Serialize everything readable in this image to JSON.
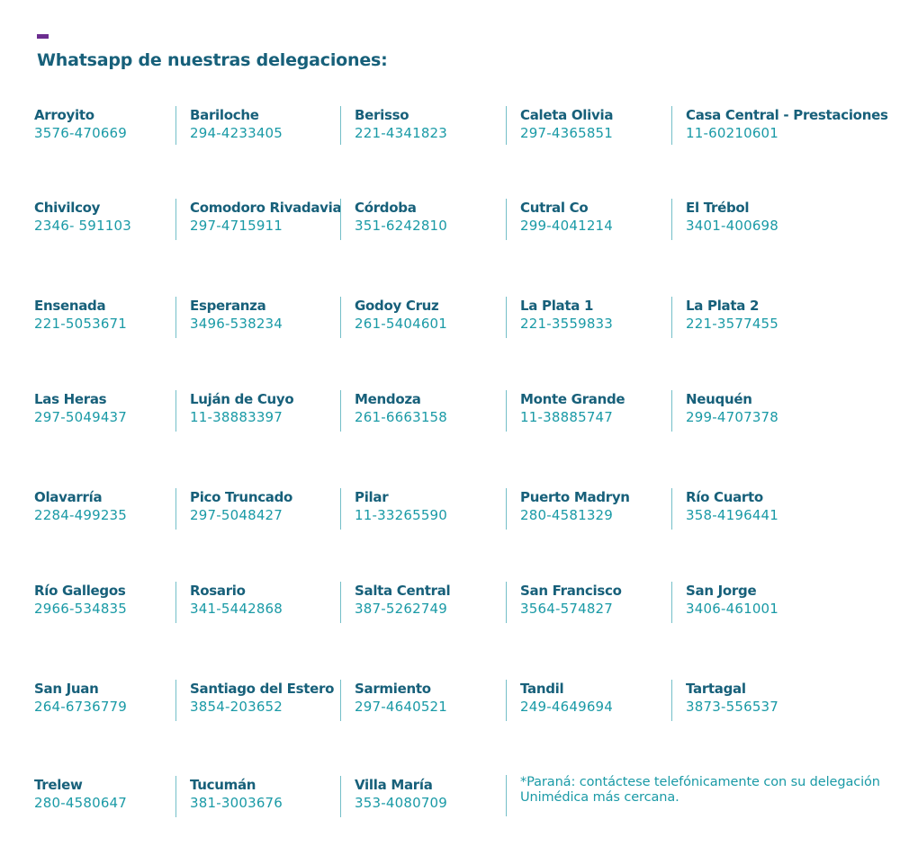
{
  "colors": {
    "accent": "#6b2d8f",
    "title": "#17607a",
    "phone": "#1a9aa6",
    "divider": "#74bfc8"
  },
  "header": {
    "title": "Whatsapp de nuestras delegaciones:"
  },
  "rows": [
    [
      {
        "name": "Arroyito",
        "phone": "3576-470669"
      },
      {
        "name": "Bariloche",
        "phone": "294-4233405"
      },
      {
        "name": "Berisso",
        "phone": "221-4341823"
      },
      {
        "name": "Caleta Olivia",
        "phone": "297-4365851"
      },
      {
        "name": "Casa Central - Prestaciones",
        "phone": "11-60210601"
      }
    ],
    [
      {
        "name": "Chivilcoy",
        "phone": "2346- 591103"
      },
      {
        "name": "Comodoro Rivadavia",
        "phone": "297-4715911"
      },
      {
        "name": "Córdoba",
        "phone": "351-6242810"
      },
      {
        "name": "Cutral Co",
        "phone": "299-4041214"
      },
      {
        "name": "El Trébol",
        "phone": "3401-400698"
      }
    ],
    [
      {
        "name": "Ensenada",
        "phone": "221-5053671"
      },
      {
        "name": "Esperanza",
        "phone": "3496-538234"
      },
      {
        "name": "Godoy Cruz",
        "phone": "261-5404601"
      },
      {
        "name": "La Plata 1",
        "phone": "221-3559833"
      },
      {
        "name": "La Plata 2",
        "phone": "221-3577455"
      }
    ],
    [
      {
        "name": "Las Heras",
        "phone": "297-5049437"
      },
      {
        "name": "Luján de Cuyo",
        "phone": "11-38883397"
      },
      {
        "name": "Mendoza",
        "phone": "261-6663158"
      },
      {
        "name": "Monte Grande",
        "phone": "11-38885747"
      },
      {
        "name": "Neuquén",
        "phone": "299-4707378"
      }
    ],
    [
      {
        "name": "Olavarría",
        "phone": "2284-499235"
      },
      {
        "name": "Pico Truncado",
        "phone": "297-5048427"
      },
      {
        "name": "Pilar",
        "phone": "11-33265590"
      },
      {
        "name": "Puerto Madryn",
        "phone": "280-4581329"
      },
      {
        "name": "Río Cuarto",
        "phone": "358-4196441"
      }
    ],
    [
      {
        "name": "Río Gallegos",
        "phone": "2966-534835"
      },
      {
        "name": "Rosario",
        "phone": "341-5442868"
      },
      {
        "name": "Salta Central",
        "phone": "387-5262749"
      },
      {
        "name": "San  Francisco",
        "phone": "3564-574827"
      },
      {
        "name": "San Jorge",
        "phone": "3406-461001"
      }
    ],
    [
      {
        "name": "San Juan",
        "phone": "264-6736779"
      },
      {
        "name": "Santiago del Estero",
        "phone": "3854-203652"
      },
      {
        "name": "Sarmiento",
        "phone": "297-4640521"
      },
      {
        "name": "Tandil",
        "phone": "249-4649694"
      },
      {
        "name": "Tartagal",
        "phone": "3873-556537"
      }
    ],
    [
      {
        "name": "Trelew",
        "phone": "280-4580647"
      },
      {
        "name": "Tucumán",
        "phone": "381-3003676"
      },
      {
        "name": "Villa María",
        "phone": "353-4080709"
      }
    ]
  ],
  "note": "*Paraná: contáctese telefónicamente con su delegación Unimédica más cercana."
}
